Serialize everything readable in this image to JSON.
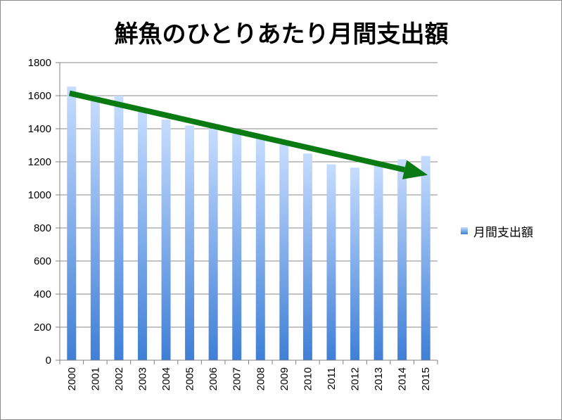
{
  "chart_data": {
    "type": "bar",
    "title": "鮮魚のひとりあたり月間支出額",
    "xlabel": "",
    "ylabel": "",
    "categories": [
      "2000",
      "2001",
      "2002",
      "2003",
      "2004",
      "2005",
      "2006",
      "2007",
      "2008",
      "2009",
      "2010",
      "2011",
      "2012",
      "2013",
      "2014",
      "2015"
    ],
    "series": [
      {
        "name": "月間支出額",
        "values": [
          1655,
          1600,
          1600,
          1525,
          1455,
          1420,
          1400,
          1395,
          1355,
          1305,
          1250,
          1185,
          1165,
          1195,
          1215,
          1235
        ]
      }
    ],
    "ylim": [
      0,
      1800
    ],
    "yticks": [
      0,
      200,
      400,
      600,
      800,
      1000,
      1200,
      1400,
      1600,
      1800
    ],
    "grid": true,
    "legend_position": "right",
    "colors": {
      "bar_top": "#c7ddff",
      "bar_bottom": "#3f7fd6",
      "trend_arrow": "#0a7a12",
      "grid": "#8a8a8a"
    },
    "annotations": [
      {
        "type": "trend-arrow",
        "from": {
          "x": "2000",
          "y": 1615
        },
        "to": {
          "x": "2015",
          "y": 1120
        }
      }
    ]
  }
}
